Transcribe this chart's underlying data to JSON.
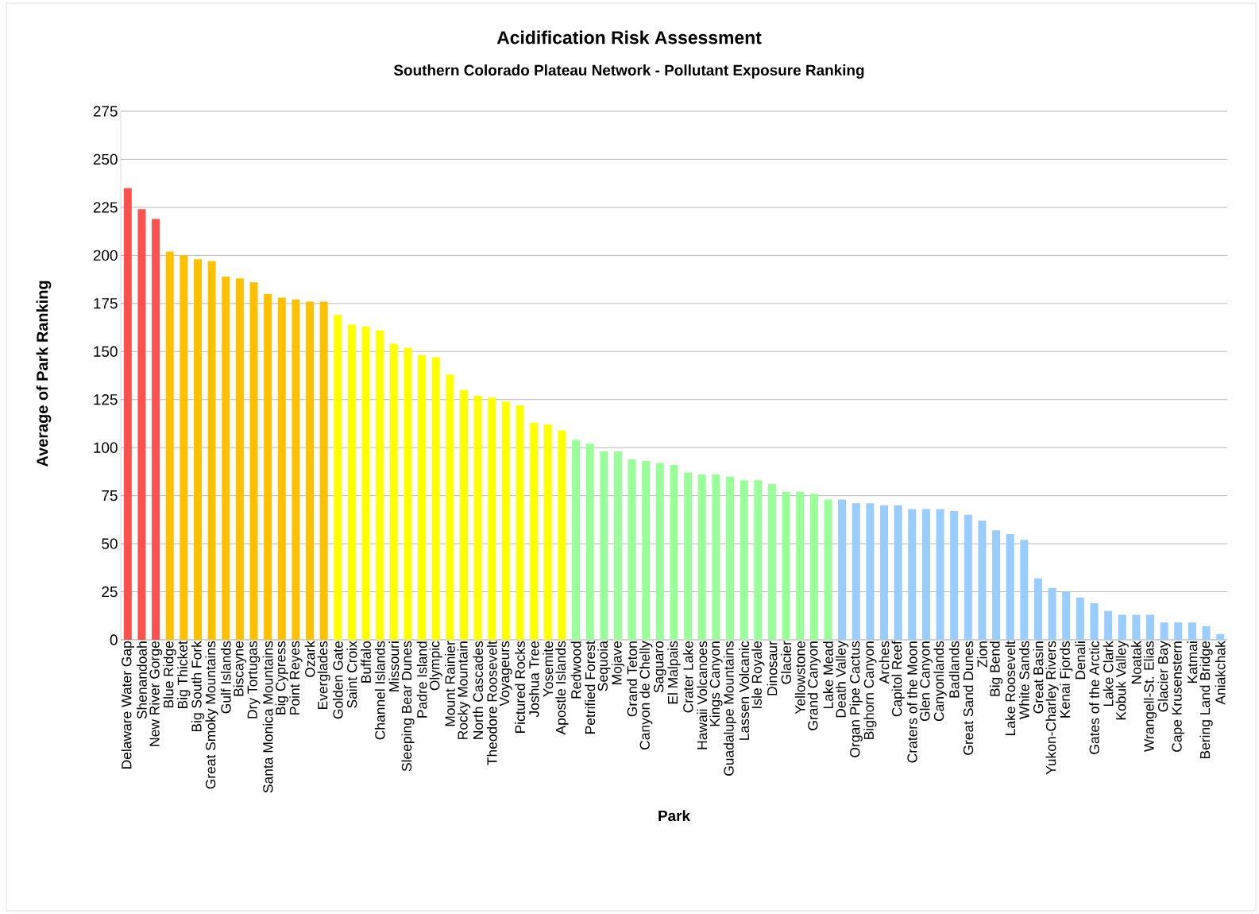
{
  "chart_data": {
    "type": "bar",
    "title": "Acidification Risk Assessment",
    "subtitle": "Southern Colorado Plateau Network - Pollutant Exposure Ranking",
    "xlabel": "Park",
    "ylabel": "Average of Park  Ranking",
    "categories": [
      "Delaware Water Gap",
      "Shenandoah",
      "New River Gorge",
      "Blue Ridge",
      "Big Thicket",
      "Big South Fork",
      "Great Smoky Mountains",
      "Gulf Islands",
      "Biscayne",
      "Dry Tortugas",
      "Santa Monica Mountains",
      "Big Cypress",
      "Point Reyes",
      "Ozark",
      "Everglades",
      "Golden Gate",
      "Saint Croix",
      "Buffalo",
      "Channel Islands",
      "Missouri",
      "Sleeping Bear Dunes",
      "Padre Island",
      "Olympic",
      "Mount Rainier",
      "Rocky Mountain",
      "North Cascades",
      "Theodore Roosevelt",
      "Voyageurs",
      "Pictured Rocks",
      "Joshua Tree",
      "Yosemite",
      "Apostle Islands",
      "Redwood",
      "Petrified Forest",
      "Sequoia",
      "Mojave",
      "Grand Teton",
      "Canyon de Chelly",
      "Saguaro",
      "El Malpais",
      "Crater Lake",
      "Hawaii Volcanoes",
      "Kings Canyon",
      "Guadalupe Mountains",
      "Lassen Volcanic",
      "Isle Royale",
      "Dinosaur",
      "Glacier",
      "Yellowstone",
      "Grand Canyon",
      "Lake Mead",
      "Death Valley",
      "Organ Pipe Cactus",
      "Bighorn Canyon",
      "Arches",
      "Capitol Reef",
      "Craters of the Moon",
      "Glen Canyon",
      "Canyonlands",
      "Badlands",
      "Great Sand Dunes",
      "Zion",
      "Big Bend",
      "Lake Roosevelt",
      "White Sands",
      "Great Basin",
      "Yukon-Charley Rivers",
      "Kenai Fjords",
      "Denali",
      "Gates of the Arctic",
      "Lake Clark",
      "Kobuk Valley",
      "Noatak",
      "Wrangell-St. Elias",
      "Glacier Bay",
      "Cape Krusenstern",
      "Katmai",
      "Bering Land Bridge",
      "Aniakchak"
    ],
    "values": [
      235,
      224,
      219,
      202,
      200,
      198,
      197,
      189,
      188,
      186,
      180,
      178,
      177,
      176,
      176,
      169,
      164,
      163,
      161,
      154,
      152,
      148,
      147,
      138,
      130,
      127,
      126,
      124,
      122,
      113,
      112,
      109,
      104,
      102,
      98,
      98,
      94,
      93,
      92,
      91,
      87,
      86,
      86,
      85,
      83,
      83,
      81,
      77,
      77,
      76,
      73,
      73,
      71,
      71,
      70,
      70,
      68,
      68,
      68,
      67,
      65,
      62,
      57,
      55,
      52,
      32,
      27,
      25,
      22,
      19,
      15,
      13,
      13,
      13,
      9,
      9,
      9,
      7,
      3
    ],
    "colors": [
      "#ff5050",
      "#ff5050",
      "#ff5050",
      "#ffc000",
      "#ffc000",
      "#ffc000",
      "#ffc000",
      "#ffc000",
      "#ffc000",
      "#ffc000",
      "#ffc000",
      "#ffc000",
      "#ffc000",
      "#ffc000",
      "#ffc000",
      "#ffff00",
      "#ffff00",
      "#ffff00",
      "#ffff00",
      "#ffff00",
      "#ffff00",
      "#ffff00",
      "#ffff00",
      "#ffff00",
      "#ffff00",
      "#ffff00",
      "#ffff00",
      "#ffff00",
      "#ffff00",
      "#ffff00",
      "#ffff00",
      "#ffff00",
      "#99ff99",
      "#99ff99",
      "#99ff99",
      "#99ff99",
      "#99ff99",
      "#99ff99",
      "#99ff99",
      "#99ff99",
      "#99ff99",
      "#99ff99",
      "#99ff99",
      "#99ff99",
      "#99ff99",
      "#99ff99",
      "#99ff99",
      "#99ff99",
      "#99ff99",
      "#99ff99",
      "#99ff99",
      "#99ccff",
      "#99ccff",
      "#99ccff",
      "#99ccff",
      "#99ccff",
      "#99ccff",
      "#99ccff",
      "#99ccff",
      "#99ccff",
      "#99ccff",
      "#99ccff",
      "#99ccff",
      "#99ccff",
      "#99ccff",
      "#99ccff",
      "#99ccff",
      "#99ccff",
      "#99ccff",
      "#99ccff",
      "#99ccff",
      "#99ccff",
      "#99ccff",
      "#99ccff",
      "#99ccff",
      "#99ccff",
      "#99ccff",
      "#99ccff",
      "#99ccff"
    ],
    "ylim": [
      0,
      275
    ],
    "yticks": [
      0,
      25,
      50,
      75,
      100,
      125,
      150,
      175,
      200,
      225,
      250,
      275
    ],
    "grid": "y"
  }
}
